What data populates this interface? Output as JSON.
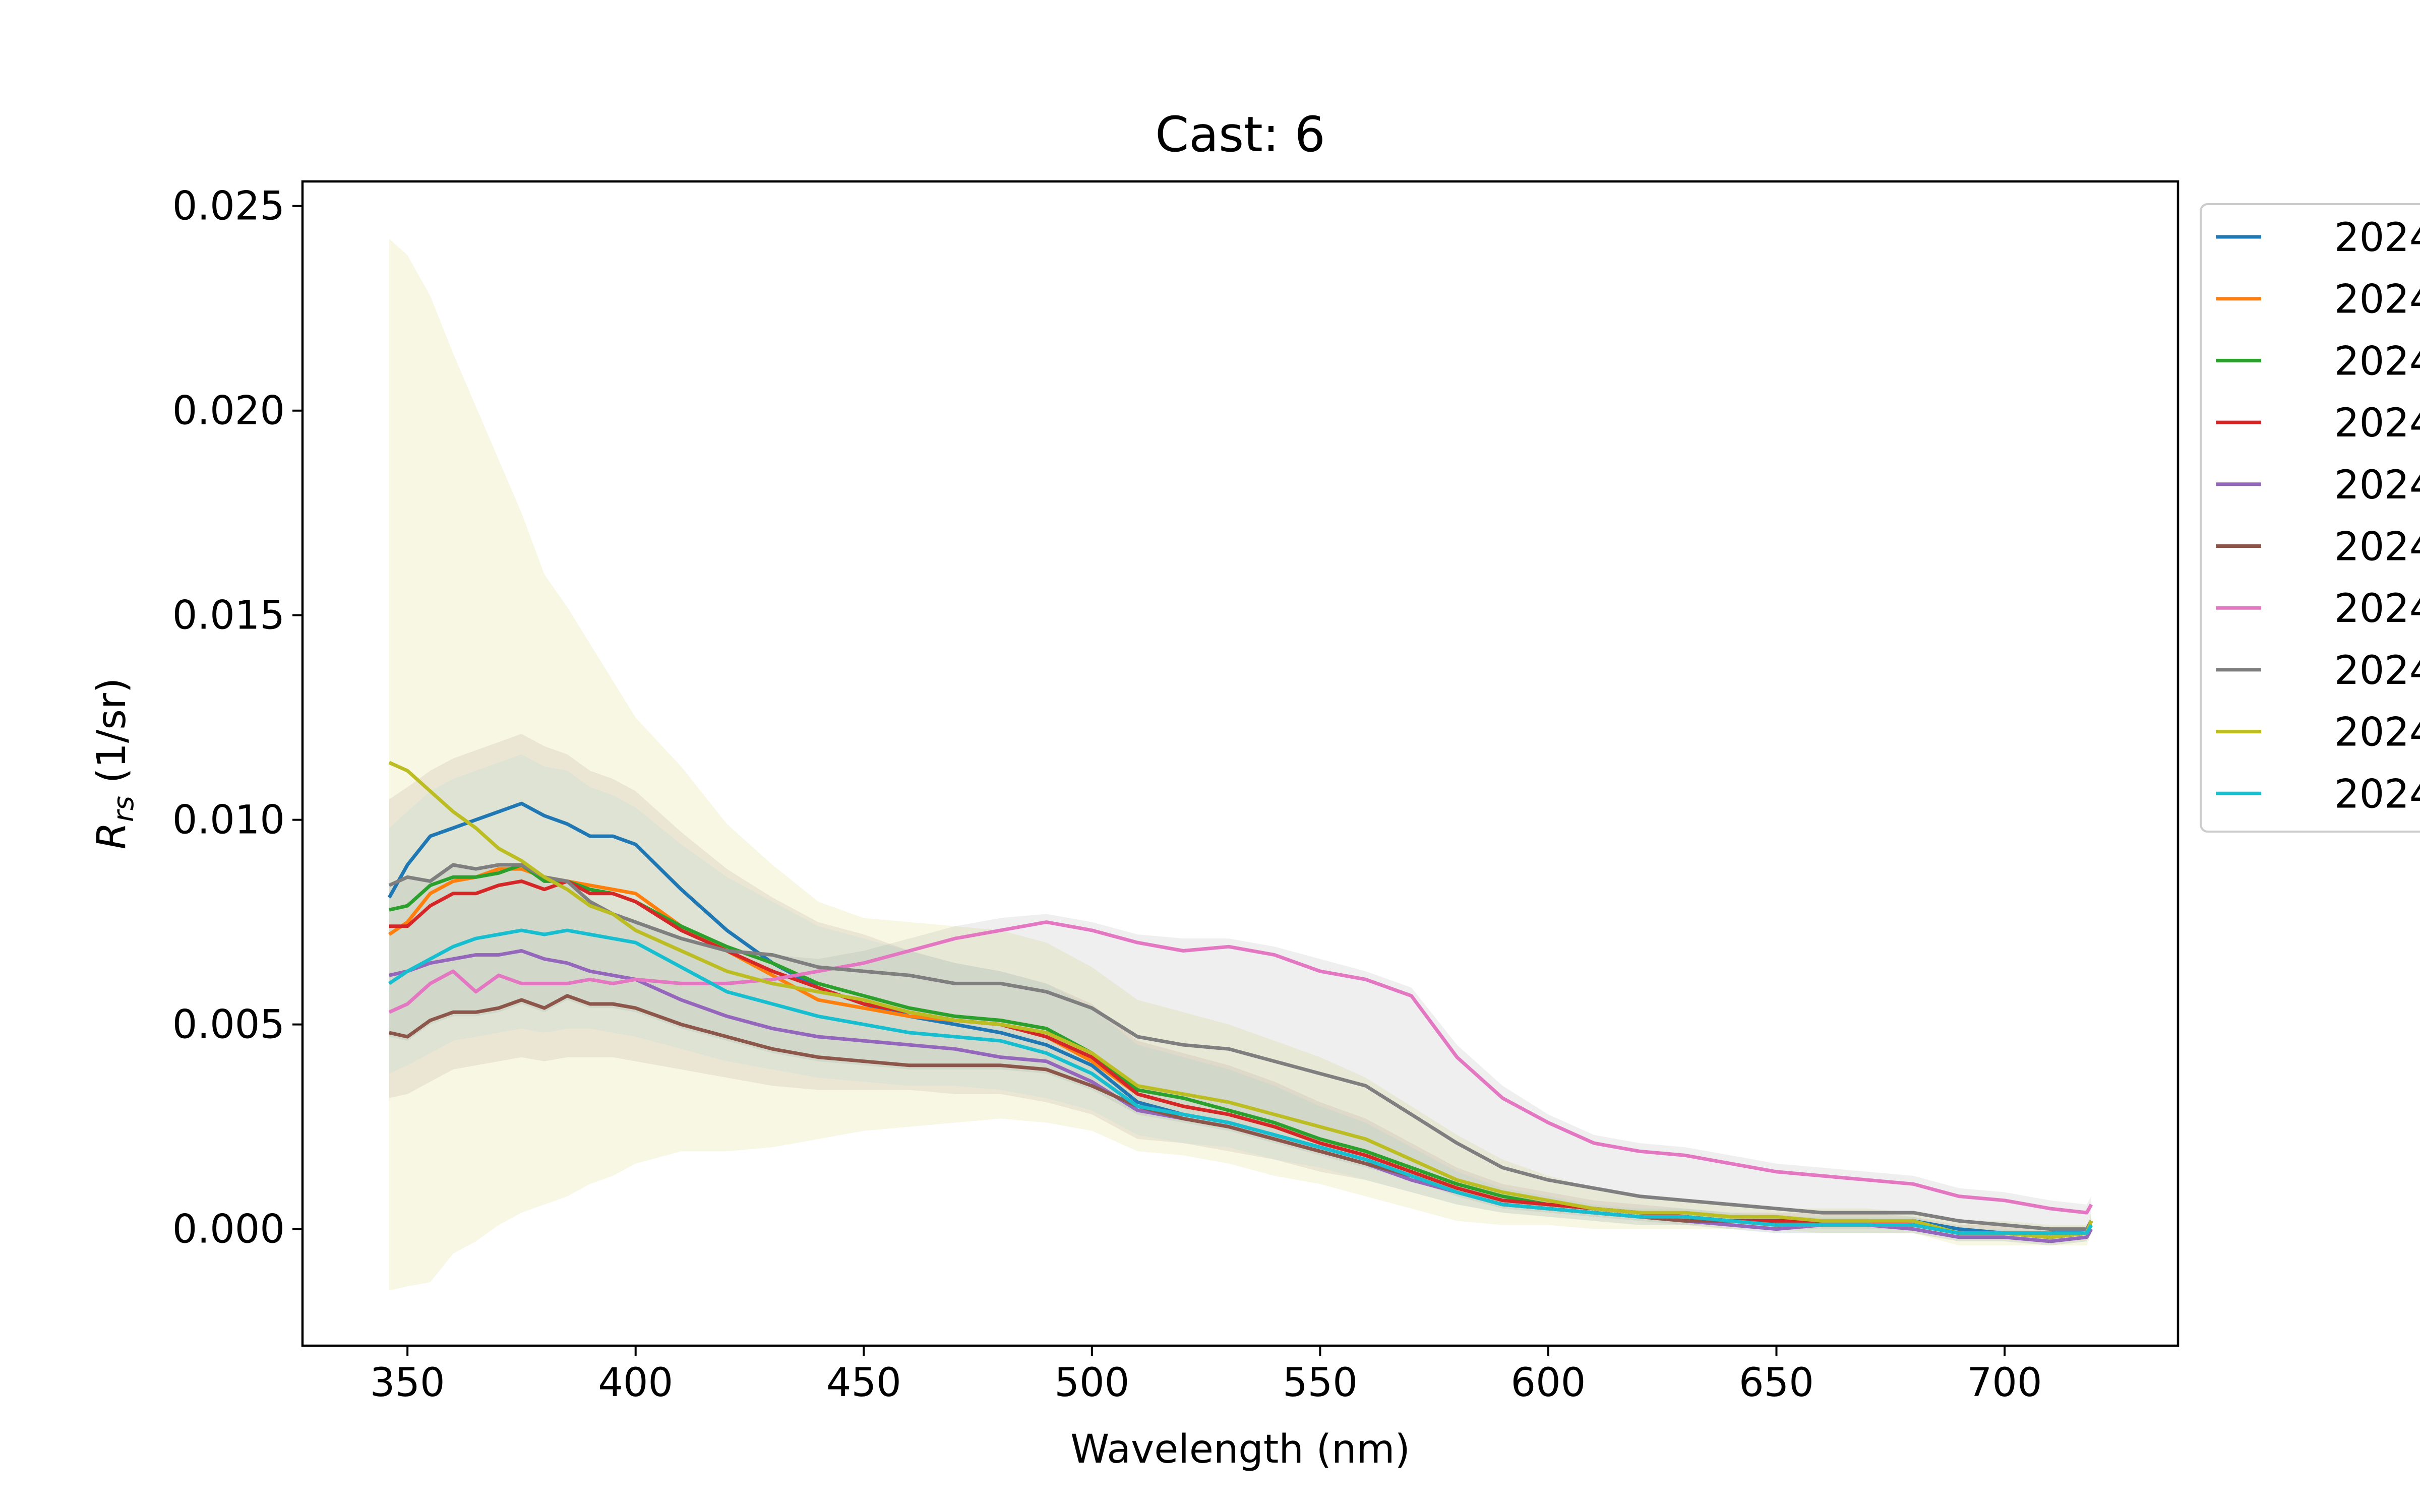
{
  "chart_data": {
    "type": "line",
    "title": "Cast: 6",
    "xlabel": "Wavelength (nm)",
    "ylabel_main": "R",
    "ylabel_sub": "rs",
    "ylabel_unit": " (1/sr)",
    "xlim": [
      327,
      738
    ],
    "ylim": [
      -0.00285,
      0.0256
    ],
    "x_ticks": [
      350,
      400,
      450,
      500,
      550,
      600,
      650,
      700
    ],
    "x_tick_labels": [
      "350",
      "400",
      "450",
      "500",
      "550",
      "600",
      "650",
      "700"
    ],
    "y_ticks": [
      0.0,
      0.005,
      0.01,
      0.015,
      0.02,
      0.025
    ],
    "y_tick_labels": [
      "0.000",
      "0.005",
      "0.010",
      "0.015",
      "0.020",
      "0.025"
    ],
    "legend_position": "right, clipped at figure edge",
    "x": [
      346,
      350,
      355,
      360,
      365,
      370,
      375,
      380,
      385,
      390,
      395,
      400,
      410,
      420,
      430,
      440,
      450,
      460,
      470,
      480,
      490,
      500,
      510,
      520,
      530,
      540,
      550,
      560,
      570,
      580,
      590,
      600,
      610,
      620,
      630,
      640,
      650,
      660,
      670,
      680,
      690,
      700,
      710,
      718,
      719
    ],
    "series": [
      {
        "name": "2024",
        "color": "#1f77b4",
        "values": [
          0.0081,
          0.0089,
          0.0096,
          0.0098,
          0.01,
          0.0102,
          0.0104,
          0.0101,
          0.0099,
          0.0096,
          0.0096,
          0.0094,
          0.0083,
          0.0073,
          0.0065,
          0.0059,
          0.0055,
          0.0052,
          0.005,
          0.0048,
          0.0045,
          0.004,
          0.0031,
          0.0028,
          0.0026,
          0.0023,
          0.002,
          0.0017,
          0.0013,
          0.0009,
          0.0006,
          0.0005,
          0.0004,
          0.0003,
          0.0003,
          0.0002,
          0.0002,
          0.0002,
          0.0002,
          0.0002,
          0.0,
          -0.0001,
          -0.0001,
          0.0,
          0.0002
        ]
      },
      {
        "name": "2024",
        "color": "#ff7f0e",
        "values": [
          0.0072,
          0.0075,
          0.0082,
          0.0085,
          0.0086,
          0.0088,
          0.0088,
          0.0086,
          0.0085,
          0.0084,
          0.0083,
          0.0082,
          0.0074,
          0.0068,
          0.0062,
          0.0056,
          0.0054,
          0.0052,
          0.0051,
          0.005,
          0.0047,
          0.0041,
          0.0033,
          0.003,
          0.0028,
          0.0025,
          0.0021,
          0.0018,
          0.0014,
          0.001,
          0.0007,
          0.0006,
          0.0005,
          0.0004,
          0.0003,
          0.0002,
          0.0001,
          0.0001,
          0.0001,
          0.0001,
          -0.0001,
          -0.0001,
          -0.0002,
          -0.0001,
          0.0001
        ]
      },
      {
        "name": "2024",
        "color": "#2ca02c",
        "values": [
          0.0078,
          0.0079,
          0.0084,
          0.0086,
          0.0086,
          0.0087,
          0.0089,
          0.0085,
          0.0085,
          0.0083,
          0.0082,
          0.008,
          0.0074,
          0.0069,
          0.0065,
          0.006,
          0.0057,
          0.0054,
          0.0052,
          0.0051,
          0.0049,
          0.0043,
          0.0034,
          0.0032,
          0.0029,
          0.0026,
          0.0022,
          0.0019,
          0.0015,
          0.0011,
          0.0008,
          0.0006,
          0.0005,
          0.0004,
          0.0003,
          0.0002,
          0.0002,
          0.0002,
          0.0002,
          0.0001,
          -0.0001,
          -0.0001,
          -0.0002,
          -0.0001,
          0.0002
        ]
      },
      {
        "name": "2024",
        "color": "#d62728",
        "values": [
          0.0074,
          0.0074,
          0.0079,
          0.0082,
          0.0082,
          0.0084,
          0.0085,
          0.0083,
          0.0085,
          0.0082,
          0.0082,
          0.008,
          0.0073,
          0.0068,
          0.0063,
          0.0059,
          0.0055,
          0.0053,
          0.0051,
          0.005,
          0.0047,
          0.0042,
          0.0033,
          0.003,
          0.0028,
          0.0025,
          0.0021,
          0.0018,
          0.0014,
          0.001,
          0.0007,
          0.0006,
          0.0005,
          0.0004,
          0.0003,
          0.0002,
          0.0002,
          0.0002,
          0.0002,
          0.0001,
          -0.0001,
          -0.0001,
          -0.0002,
          -0.0001,
          0.0002
        ]
      },
      {
        "name": "2024",
        "color": "#9467bd",
        "values": [
          0.0062,
          0.0063,
          0.0065,
          0.0066,
          0.0067,
          0.0067,
          0.0068,
          0.0066,
          0.0065,
          0.0063,
          0.0062,
          0.0061,
          0.0056,
          0.0052,
          0.0049,
          0.0047,
          0.0046,
          0.0045,
          0.0044,
          0.0042,
          0.0041,
          0.0036,
          0.0029,
          0.0027,
          0.0025,
          0.0022,
          0.0019,
          0.0016,
          0.0012,
          0.0009,
          0.0006,
          0.0005,
          0.0004,
          0.0003,
          0.0002,
          0.0001,
          0.0,
          0.0001,
          0.0001,
          0.0,
          -0.0002,
          -0.0002,
          -0.0003,
          -0.0002,
          0.0
        ]
      },
      {
        "name": "2024",
        "color": "#8c564b",
        "values": [
          0.0048,
          0.0047,
          0.0051,
          0.0053,
          0.0053,
          0.0054,
          0.0056,
          0.0054,
          0.0057,
          0.0055,
          0.0055,
          0.0054,
          0.005,
          0.0047,
          0.0044,
          0.0042,
          0.0041,
          0.004,
          0.004,
          0.004,
          0.0039,
          0.0035,
          0.003,
          0.0027,
          0.0025,
          0.0022,
          0.0019,
          0.0016,
          0.0013,
          0.0009,
          0.0006,
          0.0005,
          0.0004,
          0.0003,
          0.0002,
          0.0002,
          0.0001,
          0.0001,
          0.0001,
          0.0001,
          -0.0001,
          -0.0001,
          -0.0002,
          -0.0001,
          0.0001
        ]
      },
      {
        "name": "2024",
        "color": "#e377c2",
        "values": [
          0.0053,
          0.0055,
          0.006,
          0.0063,
          0.0058,
          0.0062,
          0.006,
          0.006,
          0.006,
          0.0061,
          0.006,
          0.0061,
          0.006,
          0.006,
          0.0061,
          0.0063,
          0.0065,
          0.0068,
          0.0071,
          0.0073,
          0.0075,
          0.0073,
          0.007,
          0.0068,
          0.0069,
          0.0067,
          0.0063,
          0.0061,
          0.0057,
          0.0042,
          0.0032,
          0.0026,
          0.0021,
          0.0019,
          0.0018,
          0.0016,
          0.0014,
          0.0013,
          0.0012,
          0.0011,
          0.0008,
          0.0007,
          0.0005,
          0.0004,
          0.0006
        ]
      },
      {
        "name": "2024",
        "color": "#7f7f7f",
        "values": [
          0.0084,
          0.0086,
          0.0085,
          0.0089,
          0.0088,
          0.0089,
          0.0089,
          0.0086,
          0.0085,
          0.008,
          0.0077,
          0.0075,
          0.0071,
          0.0068,
          0.0067,
          0.0064,
          0.0063,
          0.0062,
          0.006,
          0.006,
          0.0058,
          0.0054,
          0.0047,
          0.0045,
          0.0044,
          0.0041,
          0.0038,
          0.0035,
          0.0028,
          0.0021,
          0.0015,
          0.0012,
          0.001,
          0.0008,
          0.0007,
          0.0006,
          0.0005,
          0.0004,
          0.0004,
          0.0004,
          0.0002,
          0.0001,
          0.0,
          0.0,
          0.0002
        ]
      },
      {
        "name": "2024",
        "color": "#bcbd22",
        "values": [
          0.0114,
          0.0112,
          0.0107,
          0.0102,
          0.0098,
          0.0093,
          0.009,
          0.0086,
          0.0083,
          0.0079,
          0.0077,
          0.0073,
          0.0068,
          0.0063,
          0.006,
          0.0058,
          0.0056,
          0.0053,
          0.0051,
          0.005,
          0.0048,
          0.0043,
          0.0035,
          0.0033,
          0.0031,
          0.0028,
          0.0025,
          0.0022,
          0.0017,
          0.0012,
          0.0009,
          0.0007,
          0.0005,
          0.0004,
          0.0004,
          0.0003,
          0.0003,
          0.0002,
          0.0002,
          0.0002,
          -0.0001,
          -0.0001,
          -0.0002,
          -0.0001,
          0.0002
        ]
      },
      {
        "name": "2024",
        "color": "#17becf",
        "values": [
          0.006,
          0.0063,
          0.0066,
          0.0069,
          0.0071,
          0.0072,
          0.0073,
          0.0072,
          0.0073,
          0.0072,
          0.0071,
          0.007,
          0.0064,
          0.0058,
          0.0055,
          0.0052,
          0.005,
          0.0048,
          0.0047,
          0.0046,
          0.0043,
          0.0038,
          0.003,
          0.0028,
          0.0026,
          0.0023,
          0.002,
          0.0017,
          0.0013,
          0.0009,
          0.0006,
          0.0005,
          0.0004,
          0.0003,
          0.0003,
          0.0002,
          0.0001,
          0.0001,
          0.0001,
          0.0001,
          -0.0001,
          -0.0001,
          -0.0001,
          -0.0001,
          0.0001
        ]
      }
    ],
    "bands": [
      {
        "color": "#bcbd22",
        "opacity": 0.12,
        "upper": [
          0.0242,
          0.0238,
          0.0228,
          0.0214,
          0.0201,
          0.0188,
          0.0175,
          0.016,
          0.0152,
          0.0143,
          0.0134,
          0.0125,
          0.0113,
          0.0099,
          0.0089,
          0.008,
          0.0076,
          0.0075,
          0.0074,
          0.0073,
          0.007,
          0.0064,
          0.0056,
          0.0053,
          0.005,
          0.0046,
          0.0042,
          0.0037,
          0.003,
          0.0023,
          0.0017,
          0.0013,
          0.001,
          0.0008,
          0.0007,
          0.0006,
          0.0005,
          0.0005,
          0.0005,
          0.0004,
          0.0002,
          0.0002,
          0.0001,
          0.0001,
          0.0004
        ],
        "lower": [
          -0.0015,
          -0.0014,
          -0.0013,
          -0.0006,
          -0.0003,
          0.0001,
          0.0004,
          0.0006,
          0.0008,
          0.0011,
          0.0013,
          0.0016,
          0.0019,
          0.0019,
          0.002,
          0.0022,
          0.0024,
          0.0025,
          0.0026,
          0.0027,
          0.0026,
          0.0024,
          0.0019,
          0.0018,
          0.0016,
          0.0013,
          0.0011,
          0.0008,
          0.0005,
          0.0002,
          0.0001,
          0.0001,
          0.0,
          0.0,
          0.0,
          0.0,
          0.0,
          -0.0001,
          -0.0001,
          -0.0001,
          -0.0004,
          -0.0004,
          -0.0004,
          -0.0004,
          -0.0001
        ]
      },
      {
        "color": "#7f7f7f",
        "opacity": 0.12,
        "upper": [
          0.0084,
          0.0086,
          0.0085,
          0.0089,
          0.0088,
          0.0089,
          0.0089,
          0.0086,
          0.0085,
          0.008,
          0.0077,
          0.0075,
          0.0071,
          0.0068,
          0.0067,
          0.0066,
          0.0068,
          0.0071,
          0.0074,
          0.0076,
          0.0077,
          0.0075,
          0.0072,
          0.0071,
          0.0071,
          0.0069,
          0.0066,
          0.0063,
          0.0059,
          0.0045,
          0.0035,
          0.0028,
          0.0023,
          0.0021,
          0.002,
          0.0018,
          0.0016,
          0.0015,
          0.0014,
          0.0013,
          0.001,
          0.0009,
          0.0007,
          0.0006,
          0.0008
        ],
        "lower": [
          0.0047,
          0.0046,
          0.005,
          0.0052,
          0.0052,
          0.0053,
          0.0055,
          0.0053,
          0.0056,
          0.0054,
          0.0054,
          0.0053,
          0.0049,
          0.0046,
          0.0043,
          0.0041,
          0.004,
          0.0039,
          0.0039,
          0.0039,
          0.0038,
          0.0034,
          0.0028,
          0.0026,
          0.0024,
          0.0021,
          0.0018,
          0.0015,
          0.0012,
          0.0008,
          0.0005,
          0.0004,
          0.0003,
          0.0002,
          0.0001,
          0.0001,
          0.0,
          0.0,
          0.0,
          0.0,
          -0.0002,
          -0.0002,
          -0.0003,
          -0.0002,
          0.0
        ]
      },
      {
        "color": "#8c564b",
        "opacity": 0.1,
        "upper": [
          0.0105,
          0.0108,
          0.0112,
          0.0115,
          0.0117,
          0.0119,
          0.0121,
          0.0118,
          0.0116,
          0.0112,
          0.011,
          0.0107,
          0.0097,
          0.0088,
          0.0081,
          0.0075,
          0.0072,
          0.0068,
          0.0065,
          0.0063,
          0.006,
          0.0055,
          0.0046,
          0.0043,
          0.004,
          0.0036,
          0.0031,
          0.0027,
          0.0021,
          0.0015,
          0.0011,
          0.0009,
          0.0007,
          0.0006,
          0.0005,
          0.0004,
          0.0004,
          0.0004,
          0.0004,
          0.0003,
          0.0001,
          0.0001,
          0.0,
          0.0,
          0.0003
        ],
        "lower": [
          0.0032,
          0.0033,
          0.0036,
          0.0039,
          0.004,
          0.0041,
          0.0042,
          0.0041,
          0.0042,
          0.0042,
          0.0042,
          0.0041,
          0.0039,
          0.0037,
          0.0035,
          0.0034,
          0.0034,
          0.0034,
          0.0033,
          0.0033,
          0.0031,
          0.0028,
          0.0022,
          0.0021,
          0.0019,
          0.0017,
          0.0014,
          0.0012,
          0.0009,
          0.0006,
          0.0004,
          0.0003,
          0.0002,
          0.0001,
          0.0001,
          0.0,
          -0.0001,
          -0.0001,
          -0.0001,
          -0.0001,
          -0.0003,
          -0.0003,
          -0.0004,
          -0.0003,
          -0.0001
        ]
      },
      {
        "color": "#17becf",
        "opacity": 0.06,
        "upper": [
          0.0098,
          0.0102,
          0.0107,
          0.011,
          0.0112,
          0.0114,
          0.0116,
          0.0113,
          0.0112,
          0.0108,
          0.0106,
          0.0103,
          0.0094,
          0.0086,
          0.008,
          0.0074,
          0.0071,
          0.0068,
          0.0065,
          0.0063,
          0.006,
          0.0054,
          0.0045,
          0.0042,
          0.0039,
          0.0035,
          0.003,
          0.0026,
          0.002,
          0.0014,
          0.001,
          0.0008,
          0.0006,
          0.0005,
          0.0005,
          0.0004,
          0.0003,
          0.0003,
          0.0003,
          0.0003,
          0.0,
          0.0,
          -0.0001,
          0.0,
          0.0003
        ],
        "lower": [
          0.0038,
          0.004,
          0.0043,
          0.0046,
          0.0047,
          0.0048,
          0.0049,
          0.0048,
          0.0049,
          0.0049,
          0.0048,
          0.0047,
          0.0044,
          0.0041,
          0.0039,
          0.0037,
          0.0036,
          0.0035,
          0.0035,
          0.0034,
          0.0032,
          0.0029,
          0.0023,
          0.0021,
          0.002,
          0.0017,
          0.0015,
          0.0012,
          0.0009,
          0.0006,
          0.0004,
          0.0003,
          0.0002,
          0.0001,
          0.0001,
          0.0,
          -0.0001,
          -0.0001,
          -0.0001,
          -0.0001,
          -0.0003,
          -0.0003,
          -0.0004,
          -0.0003,
          -0.0001
        ]
      }
    ]
  },
  "legend": {
    "colors": [
      "#1f77b4",
      "#ff7f0e",
      "#2ca02c",
      "#d62728",
      "#9467bd",
      "#8c564b",
      "#e377c2",
      "#7f7f7f",
      "#bcbd22",
      "#17becf"
    ],
    "labels": [
      "2024",
      "2024",
      "2024",
      "2024",
      "2024",
      "2024",
      "2024",
      "2024",
      "2024",
      "2024"
    ]
  }
}
